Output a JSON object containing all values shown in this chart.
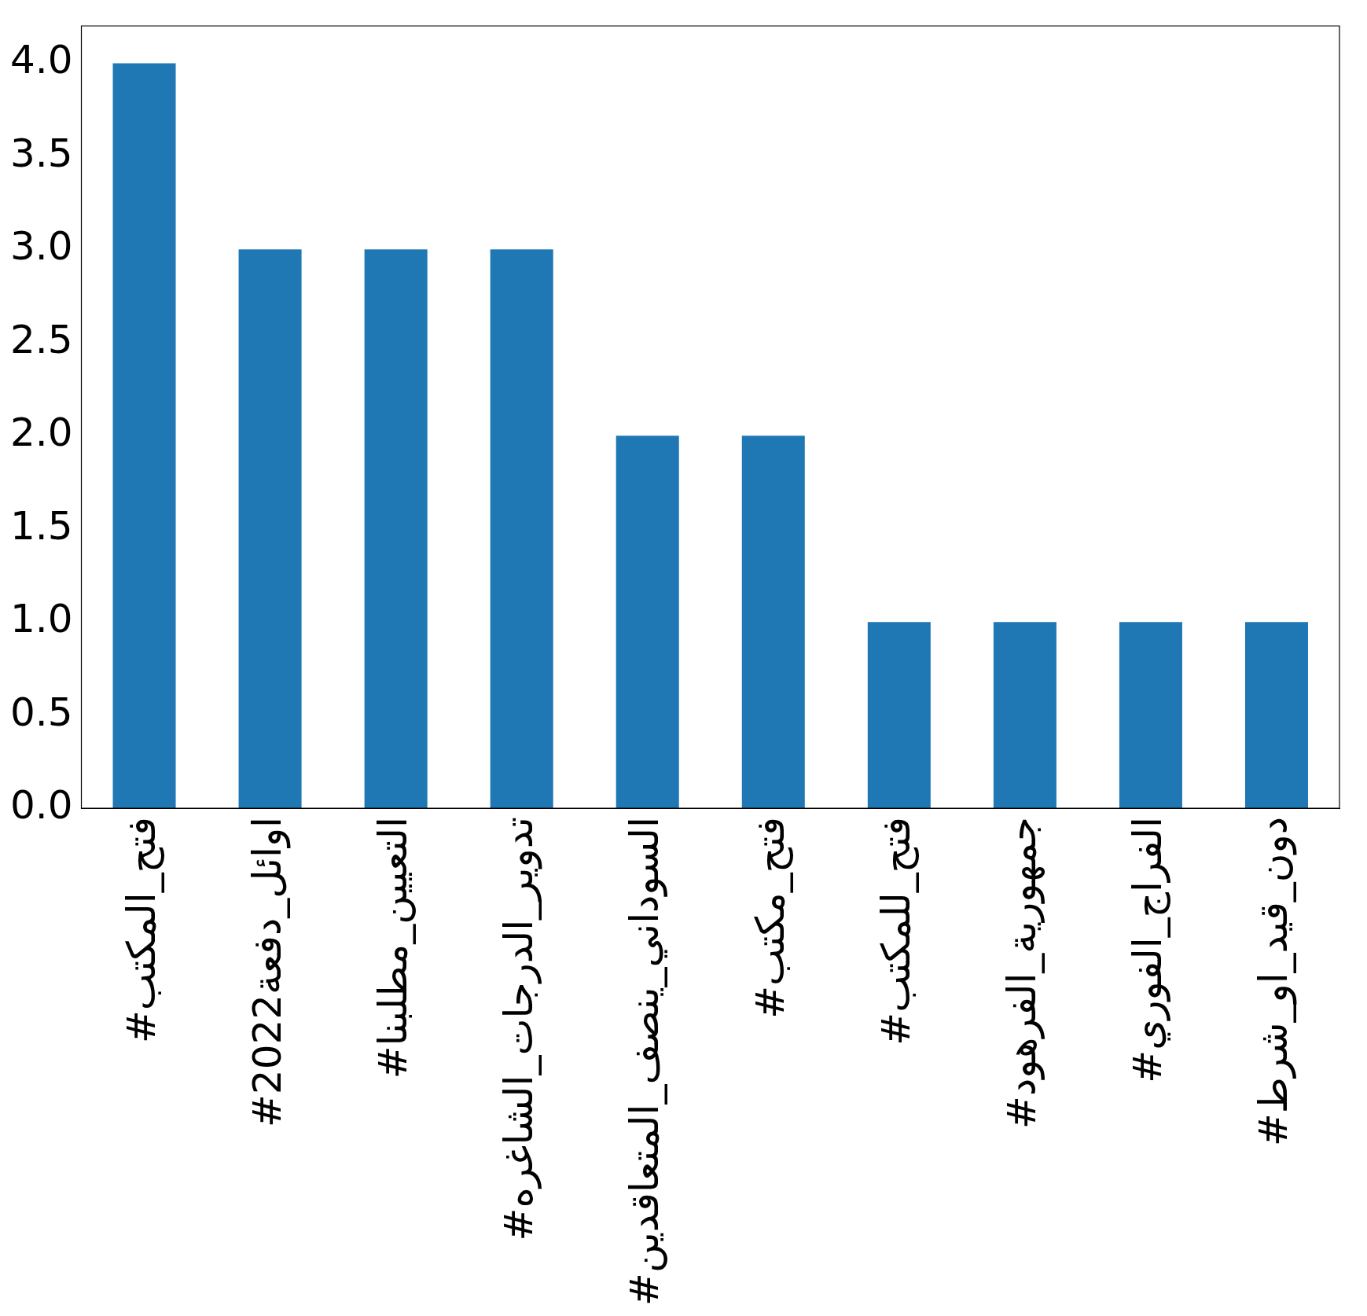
{
  "chart_data": {
    "type": "bar",
    "categories": [
      "#فتح_المكتب",
      "#اوائل_دفعة2022",
      "#التعيين_مطلبنا",
      "#تدوير_الدرجات_الشاغره",
      "#السوداني_ينصف_المتعاقدين",
      "#فتح_مكتب",
      "#فتح_للمكتب",
      "#جمهورية_الفرهود",
      "#الفراج_الفوري",
      "#دون_قيد_او_شرط"
    ],
    "values": [
      4,
      3,
      3,
      3,
      2,
      2,
      1,
      1,
      1,
      1
    ],
    "color": "#1f77b4",
    "ylim": [
      0,
      4.2
    ],
    "yticks": [
      {
        "value": 0,
        "label": "0.0"
      },
      {
        "value": 0.5,
        "label": "0.5"
      },
      {
        "value": 1,
        "label": "1.0"
      },
      {
        "value": 1.5,
        "label": "1.5"
      },
      {
        "value": 2,
        "label": "2.0"
      },
      {
        "value": 2.5,
        "label": "2.5"
      },
      {
        "value": 3,
        "label": "3.0"
      },
      {
        "value": 3.5,
        "label": "3.5"
      },
      {
        "value": 4,
        "label": "4.0"
      }
    ],
    "grid": false,
    "legend": false
  }
}
